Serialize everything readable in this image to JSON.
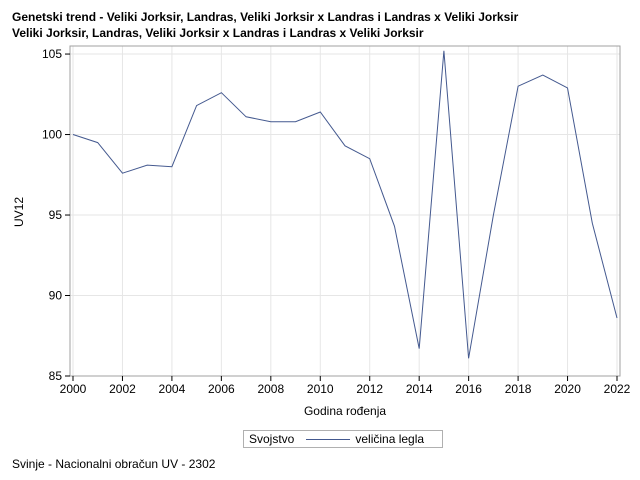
{
  "title_lines": [
    "Genetski trend - Veliki Jorksir, Landras, Veliki Jorksir x Landras i Landras x Veliki Jorksir",
    "Veliki Jorksir, Landras, Veliki Jorksir x Landras i Landras x Veliki Jorksir"
  ],
  "legend": {
    "title": "Svojstvo",
    "series_label": "veličina legla"
  },
  "footnote": "Svinje - Nacionalni obračun UV - 2302",
  "colors": {
    "line": "#44598f",
    "grid": "#e6e6e6",
    "frame": "#a0a0a0"
  },
  "chart_data": {
    "type": "line",
    "xlabel": "Godina rođenja",
    "ylabel": "UV12",
    "xlim": [
      2000,
      2022
    ],
    "ylim": [
      85,
      105.5
    ],
    "x_ticks": [
      2000,
      2002,
      2004,
      2006,
      2008,
      2010,
      2012,
      2014,
      2016,
      2018,
      2020,
      2022
    ],
    "y_ticks": [
      85,
      90,
      95,
      100,
      105
    ],
    "grid": true,
    "legend_position": "bottom-center",
    "series": [
      {
        "name": "veličina legla",
        "x": [
          2000,
          2001,
          2002,
          2003,
          2004,
          2005,
          2006,
          2007,
          2008,
          2009,
          2010,
          2011,
          2012,
          2013,
          2014,
          2015,
          2016,
          2017,
          2018,
          2019,
          2020,
          2021,
          2022
        ],
        "y": [
          100.0,
          99.5,
          97.6,
          98.1,
          98.0,
          101.8,
          102.6,
          101.1,
          100.8,
          100.8,
          101.4,
          99.3,
          98.5,
          94.3,
          86.7,
          105.2,
          86.1,
          95.0,
          103.0,
          103.7,
          102.9,
          94.5,
          88.6
        ]
      }
    ]
  }
}
